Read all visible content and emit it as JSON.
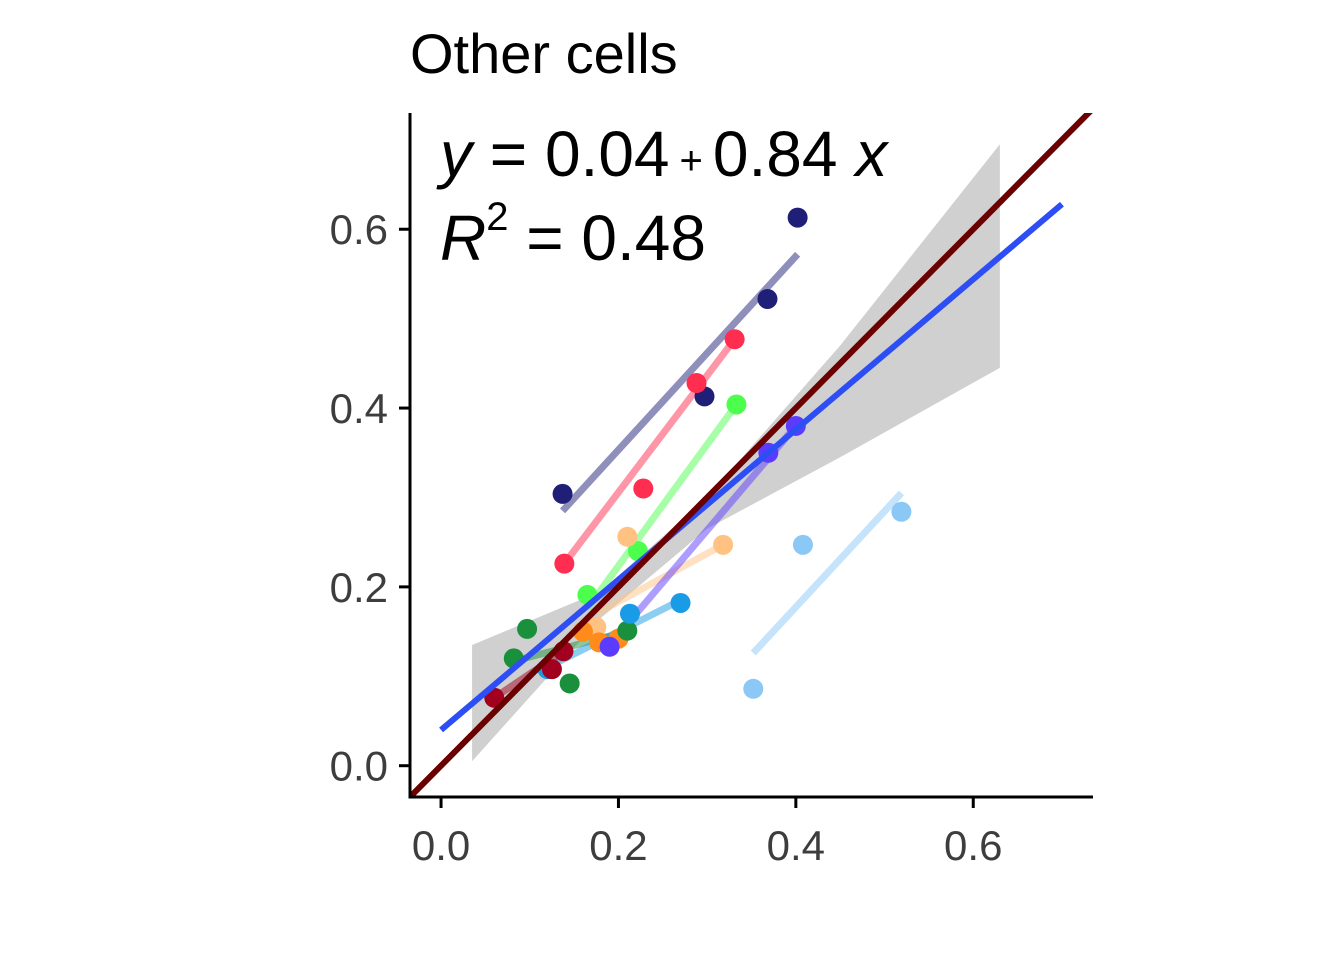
{
  "chart_data": {
    "type": "scatter",
    "title": "Other cells",
    "xlabel": "",
    "ylabel": "",
    "xlim": [
      -0.035,
      0.735
    ],
    "ylim": [
      -0.035,
      0.73
    ],
    "x_ticks": [
      0.0,
      0.2,
      0.4,
      0.6
    ],
    "x_tick_labels": [
      "0.0",
      "0.2",
      "0.4",
      "0.6"
    ],
    "y_ticks": [
      0.0,
      0.2,
      0.4,
      0.6
    ],
    "y_tick_labels": [
      "0.0",
      "0.2",
      "0.4",
      "0.6"
    ],
    "grid": false,
    "annotation": {
      "line1": {
        "y": "y",
        "eq": " = 0.04",
        "plus": "+",
        "coef": "0.84",
        "x": "x"
      },
      "line2": {
        "R": "R",
        "sup": "2",
        "val": " = 0.48"
      }
    },
    "identity_line": {
      "color": "#6b0000",
      "x": [
        -0.035,
        0.735
      ],
      "y": [
        -0.035,
        0.735
      ]
    },
    "overall_fit": {
      "color": "#2e4ef5",
      "x": [
        0.0,
        0.7
      ],
      "y": [
        0.04,
        0.628
      ],
      "band": {
        "color": "#d0d0d0",
        "x": [
          0.035,
          0.18,
          0.3,
          0.45,
          0.63
        ],
        "lower": [
          0.005,
          0.165,
          0.265,
          0.345,
          0.445
        ],
        "upper": [
          0.135,
          0.195,
          0.3,
          0.47,
          0.695
        ]
      }
    },
    "series": [
      {
        "color": "#1f1f78",
        "points": [
          [
            0.137,
            0.304
          ],
          [
            0.297,
            0.413
          ],
          [
            0.368,
            0.522
          ],
          [
            0.402,
            0.613
          ]
        ],
        "fit": [
          [
            0.137,
            0.285
          ],
          [
            0.402,
            0.572
          ]
        ]
      },
      {
        "color": "#ff2e50",
        "points": [
          [
            0.139,
            0.226
          ],
          [
            0.228,
            0.31
          ],
          [
            0.288,
            0.428
          ],
          [
            0.331,
            0.477
          ]
        ],
        "fit": [
          [
            0.139,
            0.226
          ],
          [
            0.331,
            0.477
          ]
        ]
      },
      {
        "color": "#4dff4d",
        "points": [
          [
            0.165,
            0.191
          ],
          [
            0.222,
            0.24
          ],
          [
            0.333,
            0.404
          ]
        ],
        "fit": [
          [
            0.165,
            0.176
          ],
          [
            0.333,
            0.404
          ]
        ]
      },
      {
        "color": "#ffc283",
        "points": [
          [
            0.175,
            0.155
          ],
          [
            0.21,
            0.256
          ],
          [
            0.318,
            0.247
          ]
        ],
        "fit": [
          [
            0.175,
            0.17
          ],
          [
            0.318,
            0.247
          ]
        ]
      },
      {
        "color": "#ff8c1a",
        "points": [
          [
            0.16,
            0.15
          ],
          [
            0.178,
            0.138
          ],
          [
            0.2,
            0.142
          ]
        ],
        "fit": [
          [
            0.16,
            0.148
          ],
          [
            0.2,
            0.142
          ]
        ]
      },
      {
        "color": "#1a8f3c",
        "points": [
          [
            0.082,
            0.12
          ],
          [
            0.097,
            0.153
          ],
          [
            0.145,
            0.092
          ],
          [
            0.21,
            0.151
          ]
        ],
        "fit": [
          [
            0.082,
            0.117
          ],
          [
            0.21,
            0.15
          ]
        ]
      },
      {
        "color": "#5b3cff",
        "points": [
          [
            0.19,
            0.133
          ],
          [
            0.369,
            0.35
          ],
          [
            0.4,
            0.38
          ]
        ],
        "fit": [
          [
            0.19,
            0.135
          ],
          [
            0.4,
            0.38
          ]
        ]
      },
      {
        "color": "#1a9be6",
        "points": [
          [
            0.12,
            0.108
          ],
          [
            0.213,
            0.17
          ],
          [
            0.27,
            0.182
          ]
        ],
        "fit": [
          [
            0.12,
            0.11
          ],
          [
            0.27,
            0.185
          ]
        ]
      },
      {
        "color": "#8cc8f5",
        "points": [
          [
            0.352,
            0.086
          ],
          [
            0.408,
            0.247
          ],
          [
            0.519,
            0.284
          ]
        ],
        "fit": [
          [
            0.352,
            0.126
          ],
          [
            0.519,
            0.305
          ]
        ]
      },
      {
        "color": "#a1001e",
        "points": [
          [
            0.06,
            0.076
          ],
          [
            0.125,
            0.108
          ],
          [
            0.138,
            0.128
          ]
        ],
        "fit": [
          [
            0.06,
            0.076
          ],
          [
            0.138,
            0.128
          ]
        ]
      }
    ]
  }
}
